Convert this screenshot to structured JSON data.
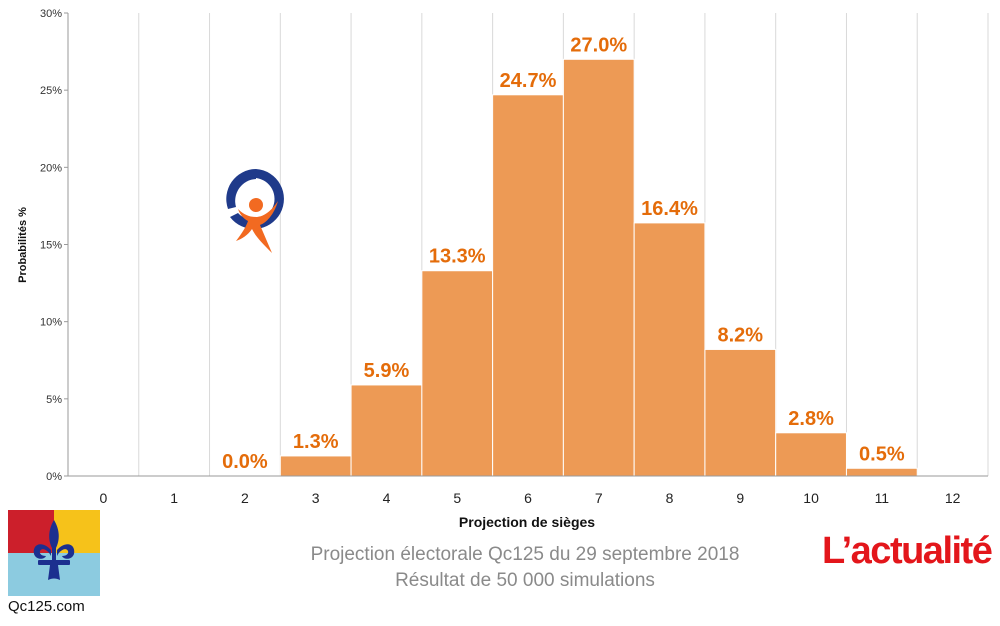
{
  "chart_data": {
    "type": "bar",
    "categories": [
      "0",
      "1",
      "2",
      "3",
      "4",
      "5",
      "6",
      "7",
      "8",
      "9",
      "10",
      "11",
      "12"
    ],
    "values": [
      null,
      null,
      0.0,
      1.3,
      5.9,
      13.3,
      24.7,
      27.0,
      16.4,
      8.2,
      2.8,
      0.5,
      null
    ],
    "data_labels": [
      "",
      "",
      "0.0%",
      "1.3%",
      "5.9%",
      "13.3%",
      "24.7%",
      "27.0%",
      "16.4%",
      "8.2%",
      "2.8%",
      "0.5%",
      ""
    ],
    "xlabel": "Projection de sièges",
    "ylabel": "Probabilités %",
    "ylim": [
      0,
      30
    ],
    "yticks": [
      0,
      5,
      10,
      15,
      20,
      25,
      30
    ],
    "ytick_labels": [
      "0%",
      "5%",
      "10%",
      "15%",
      "20%",
      "25%",
      "30%"
    ],
    "grid": "vertical",
    "bar_color": "#ed9a55",
    "label_color": "#e46c0a"
  },
  "caption": {
    "line1": "Projection électorale Qc125 du 29 septembre 2018",
    "line2": "Résultat de 50 000 simulations"
  },
  "source_site": "Qc125.com",
  "brand": "L’actualité",
  "icons": [
    "quebec-flag-logo-icon",
    "party-logo-icon"
  ],
  "colors": {
    "brand_red": "#e3161b",
    "party_blue": "#1f3a8a",
    "party_orange": "#f26a21"
  }
}
